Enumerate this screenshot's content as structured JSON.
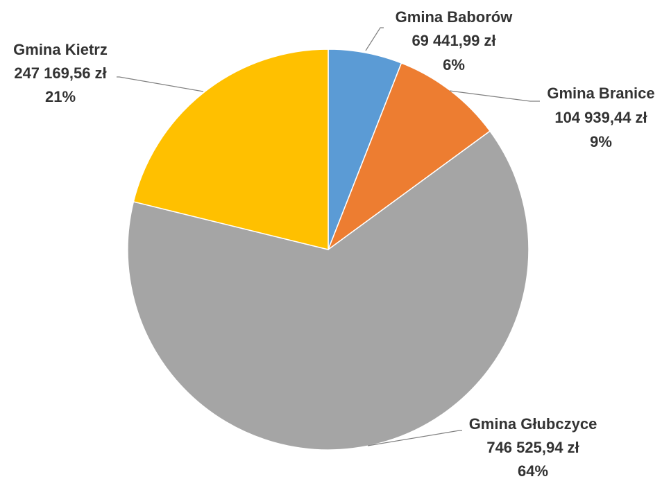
{
  "chart_data": {
    "type": "pie",
    "title": "",
    "slices": [
      {
        "name": "Gmina Baborów",
        "value": 69441.99,
        "value_label": "69 441,99 zł",
        "percent_label": "6%",
        "color": "#5B9BD5"
      },
      {
        "name": "Gmina Branice",
        "value": 104939.44,
        "value_label": "104 939,44 zł",
        "percent_label": "9%",
        "color": "#ED7D31"
      },
      {
        "name": "Gmina Głubczyce",
        "value": 746525.94,
        "value_label": "746 525,94 zł",
        "percent_label": "64%",
        "color": "#A5A5A5"
      },
      {
        "name": "Gmina Kietrz",
        "value": 247169.56,
        "value_label": "247 169,56 zł",
        "percent_label": "21%",
        "color": "#FFC000"
      }
    ],
    "start_angle_deg": 0,
    "direction": "clockwise",
    "legend": "none"
  }
}
